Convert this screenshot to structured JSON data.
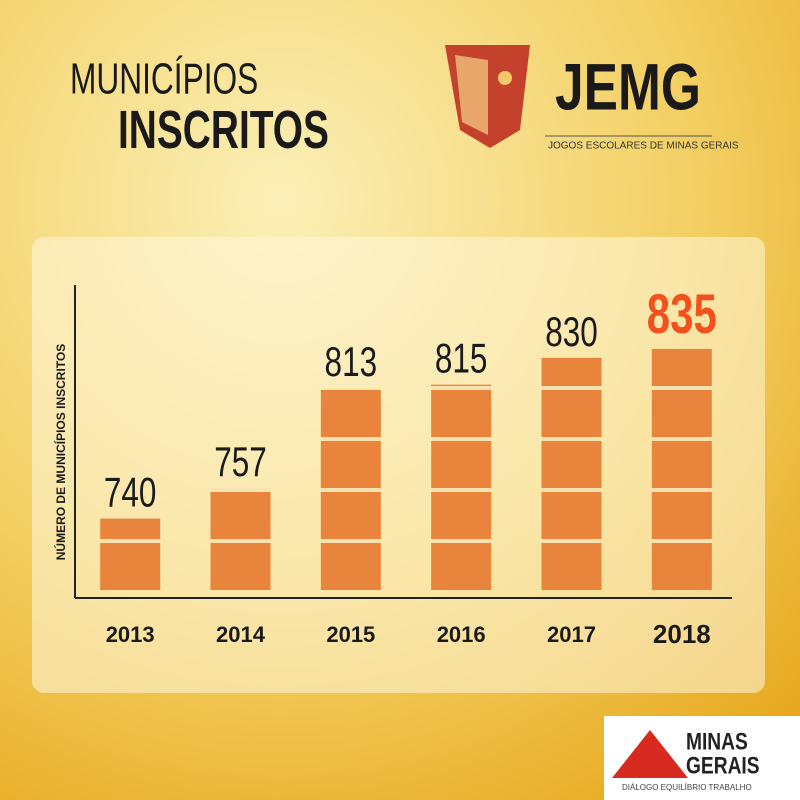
{
  "chart_data": {
    "type": "bar",
    "title": [
      "MUNICÍPIOS",
      "INSCRITOS"
    ],
    "y_label": "NÚMERO DE MUNICÍPIOS INSCRITOS",
    "categories": [
      "2013",
      "2014",
      "2015",
      "2016",
      "2017",
      "2018"
    ],
    "values": [
      740,
      757,
      813,
      815,
      830,
      835
    ],
    "color": "#e8843c",
    "ylim": [
      700,
      840
    ]
  },
  "logo": {
    "name": "JEMG",
    "subtitle": "JOGOS ESCOLARES DE MINAS GERAIS"
  },
  "footer": {
    "line1": "MINAS",
    "line2": "GERAIS",
    "tagline": "DIÁLOGO EQUILÍBRIO TRABALHO"
  }
}
